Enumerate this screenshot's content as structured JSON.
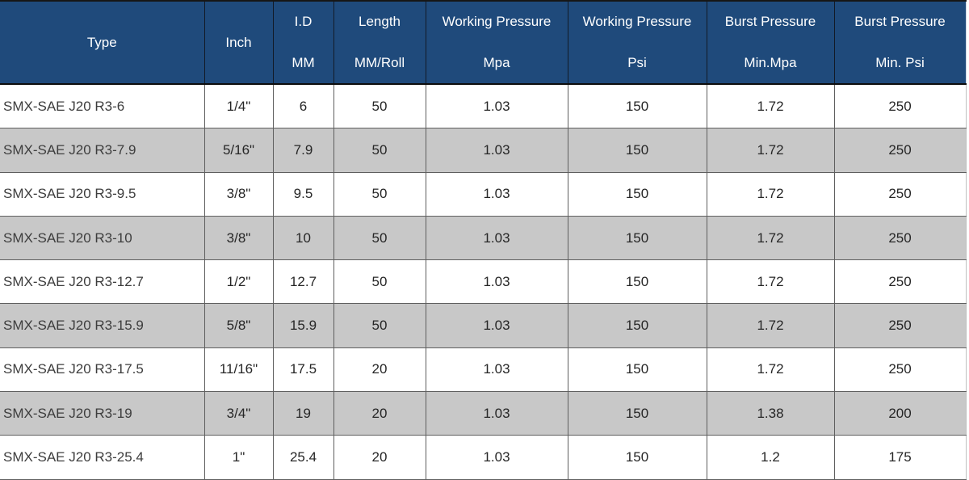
{
  "colors": {
    "header_bg": "#1F4A7B",
    "header_text": "#FFFFFF",
    "row_bg": "#FFFFFF",
    "row_alt_bg": "#C8C8C8",
    "grid_border": "#5F5F5F",
    "top_border": "#161616",
    "cell_text": "#262626",
    "type_text": "#3D3D3D"
  },
  "table": {
    "columns": [
      {
        "id": "type",
        "line1": "Type",
        "line2": ""
      },
      {
        "id": "inch",
        "line1": "Inch",
        "line2": ""
      },
      {
        "id": "id-mm",
        "line1": "I.D",
        "line2": "MM"
      },
      {
        "id": "length-mm-roll",
        "line1": "Length",
        "line2": "MM/Roll"
      },
      {
        "id": "working-pressure-mpa",
        "line1": "Working Pressure",
        "line2": "Mpa"
      },
      {
        "id": "working-pressure-psi",
        "line1": "Working Pressure",
        "line2": "Psi"
      },
      {
        "id": "burst-pressure-mpa",
        "line1": "Burst Pressure",
        "line2": "Min.Mpa"
      },
      {
        "id": "burst-pressure-psi",
        "line1": "Burst Pressure",
        "line2": "Min. Psi"
      }
    ],
    "rows": [
      [
        "SMX-SAE J20 R3-6",
        "1/4\"",
        "6",
        "50",
        "1.03",
        "150",
        "1.72",
        "250"
      ],
      [
        "SMX-SAE J20 R3-7.9",
        "5/16\"",
        "7.9",
        "50",
        "1.03",
        "150",
        "1.72",
        "250"
      ],
      [
        "SMX-SAE J20 R3-9.5",
        "3/8\"",
        "9.5",
        "50",
        "1.03",
        "150",
        "1.72",
        "250"
      ],
      [
        "SMX-SAE J20 R3-10",
        "3/8\"",
        "10",
        "50",
        "1.03",
        "150",
        "1.72",
        "250"
      ],
      [
        "SMX-SAE J20 R3-12.7",
        "1/2\"",
        "12.7",
        "50",
        "1.03",
        "150",
        "1.72",
        "250"
      ],
      [
        "SMX-SAE J20 R3-15.9",
        "5/8\"",
        "15.9",
        "50",
        "1.03",
        "150",
        "1.72",
        "250"
      ],
      [
        "SMX-SAE J20 R3-17.5",
        "11/16\"",
        "17.5",
        "20",
        "1.03",
        "150",
        "1.72",
        "250"
      ],
      [
        "SMX-SAE J20 R3-19",
        "3/4\"",
        "19",
        "20",
        "1.03",
        "150",
        "1.38",
        "200"
      ],
      [
        "SMX-SAE J20 R3-25.4",
        "1\"",
        "25.4",
        "20",
        "1.03",
        "150",
        "1.2",
        "175"
      ]
    ]
  }
}
